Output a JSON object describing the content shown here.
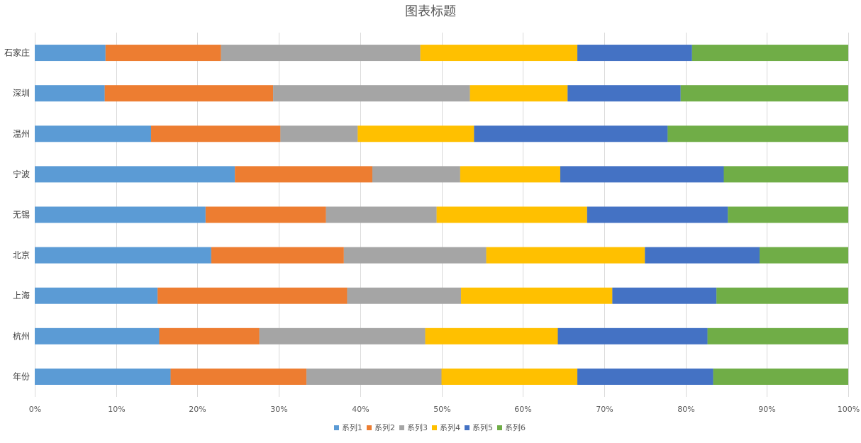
{
  "chart_data": {
    "type": "bar",
    "orientation": "horizontal",
    "stacked": "percent",
    "title": "图表标题",
    "categories": [
      "石家庄",
      "深圳",
      "温州",
      "宁波",
      "无锡",
      "北京",
      "上海",
      "杭州",
      "年份"
    ],
    "x_ticks": [
      "0%",
      "10%",
      "20%",
      "30%",
      "40%",
      "50%",
      "60%",
      "70%",
      "80%",
      "90%",
      "100%"
    ],
    "xlim": [
      0,
      100
    ],
    "grid": true,
    "legend_position": "bottom",
    "series": [
      {
        "name": "系列1",
        "color": "#5B9BD5",
        "values": [
          8.7,
          8.6,
          14.3,
          24.6,
          21.0,
          21.7,
          15.1,
          15.3,
          16.7
        ]
      },
      {
        "name": "系列2",
        "color": "#ED7D31",
        "values": [
          14.2,
          20.7,
          15.9,
          16.9,
          14.8,
          16.3,
          23.3,
          12.3,
          16.7
        ]
      },
      {
        "name": "系列3",
        "color": "#A5A5A5",
        "values": [
          24.5,
          24.2,
          9.5,
          10.8,
          13.6,
          17.5,
          14.0,
          20.4,
          16.6
        ]
      },
      {
        "name": "系列4",
        "color": "#FFC000",
        "values": [
          19.3,
          12.0,
          14.3,
          12.3,
          18.5,
          19.5,
          18.6,
          16.3,
          16.7
        ]
      },
      {
        "name": "系列5",
        "color": "#4472C4",
        "values": [
          14.1,
          13.9,
          23.8,
          20.1,
          17.3,
          14.1,
          12.8,
          18.4,
          16.7
        ]
      },
      {
        "name": "系列6",
        "color": "#70AD47",
        "values": [
          19.2,
          20.6,
          22.2,
          15.3,
          14.8,
          10.9,
          16.2,
          17.3,
          16.6
        ]
      }
    ]
  }
}
